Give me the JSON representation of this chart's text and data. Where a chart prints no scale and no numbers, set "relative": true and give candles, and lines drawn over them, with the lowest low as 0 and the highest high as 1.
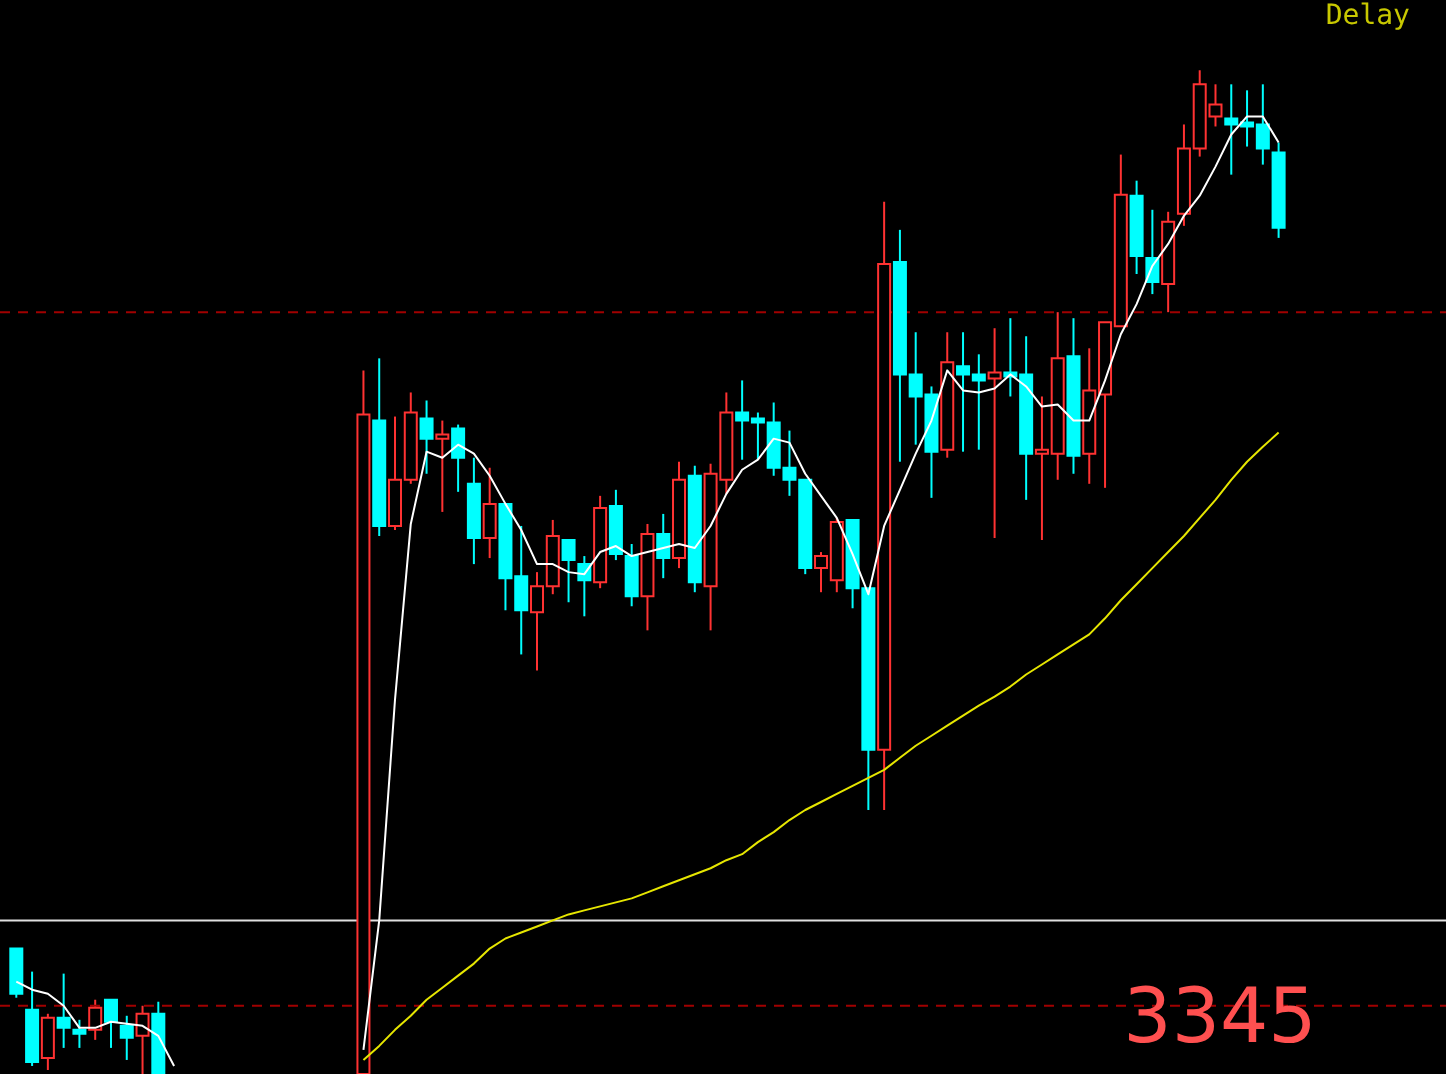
{
  "chart_data": {
    "type": "candlestick",
    "relative": true,
    "categories": [
      null,
      null,
      null,
      null,
      null,
      null,
      null,
      null,
      null,
      null,
      null,
      null,
      null,
      null,
      null,
      null,
      null,
      null,
      null,
      null,
      null,
      null,
      null,
      null,
      null,
      null,
      null,
      null,
      null,
      null,
      null,
      null,
      null,
      null,
      null,
      null,
      null,
      null,
      null,
      null,
      null,
      null,
      null,
      null,
      null,
      null,
      null,
      null,
      null,
      null,
      null,
      null,
      null,
      null,
      null,
      null,
      null,
      null,
      null,
      null,
      null,
      null,
      null,
      null,
      null,
      null,
      null,
      null,
      null,
      null,
      null,
      null,
      null,
      null,
      null,
      null,
      null,
      null,
      null,
      null,
      null
    ],
    "ohlc": [
      [
        0.125,
        0.125,
        0.076,
        0.08
      ],
      [
        0.064,
        0.102,
        0.008,
        0.012
      ],
      [
        0.016,
        0.06,
        0.004,
        0.056
      ],
      [
        0.056,
        0.1,
        0.026,
        0.046
      ],
      [
        0.044,
        0.054,
        0.026,
        0.04
      ],
      [
        0.044,
        0.074,
        0.034,
        0.066
      ],
      [
        0.074,
        0.074,
        0.026,
        0.052
      ],
      [
        0.048,
        0.058,
        0.014,
        0.036
      ],
      [
        0.038,
        0.068,
        0.0,
        0.06
      ],
      [
        0.06,
        0.072,
        0.0,
        0.0
      ],
      null,
      null,
      null,
      null,
      null,
      null,
      null,
      null,
      null,
      null,
      null,
      null,
      [
        0.0,
        0.701,
        0.0,
        0.657
      ],
      [
        0.651,
        0.713,
        0.536,
        0.546
      ],
      [
        0.546,
        0.655,
        0.542,
        0.592
      ],
      [
        0.592,
        0.679,
        0.588,
        0.659
      ],
      [
        0.653,
        0.671,
        0.598,
        0.633
      ],
      [
        0.633,
        0.651,
        0.56,
        0.637
      ],
      [
        0.643,
        0.647,
        0.58,
        0.614
      ],
      [
        0.588,
        0.614,
        0.508,
        0.534
      ],
      [
        0.534,
        0.604,
        0.514,
        0.568
      ],
      [
        0.568,
        0.568,
        0.462,
        0.494
      ],
      [
        0.496,
        0.546,
        0.418,
        0.462
      ],
      [
        0.46,
        0.5,
        0.402,
        0.486
      ],
      [
        0.486,
        0.552,
        0.478,
        0.536
      ],
      [
        0.532,
        0.532,
        0.47,
        0.512
      ],
      [
        0.508,
        0.516,
        0.456,
        0.492
      ],
      [
        0.49,
        0.576,
        0.484,
        0.564
      ],
      [
        0.566,
        0.582,
        0.512,
        0.518
      ],
      [
        0.516,
        0.528,
        0.466,
        0.476
      ],
      [
        0.476,
        0.548,
        0.442,
        0.538
      ],
      [
        0.538,
        0.558,
        0.494,
        0.514
      ],
      [
        0.514,
        0.61,
        0.504,
        0.592
      ],
      [
        0.596,
        0.606,
        0.48,
        0.49
      ],
      [
        0.486,
        0.608,
        0.442,
        0.598
      ],
      [
        0.592,
        0.679,
        0.578,
        0.659
      ],
      [
        0.659,
        0.691,
        0.612,
        0.651
      ],
      [
        0.653,
        0.659,
        0.612,
        0.649
      ],
      [
        0.649,
        0.669,
        0.596,
        0.604
      ],
      [
        0.604,
        0.641,
        0.576,
        0.592
      ],
      [
        0.592,
        0.592,
        0.498,
        0.504
      ],
      [
        0.504,
        0.52,
        0.48,
        0.516
      ],
      [
        0.492,
        0.554,
        0.48,
        0.55
      ],
      [
        0.552,
        0.552,
        0.464,
        0.484
      ],
      [
        0.484,
        0.484,
        0.263,
        0.323
      ],
      [
        0.323,
        0.869,
        0.263,
        0.807
      ],
      [
        0.809,
        0.841,
        0.61,
        0.697
      ],
      [
        0.697,
        0.739,
        0.627,
        0.675
      ],
      [
        0.677,
        0.685,
        0.574,
        0.62
      ],
      [
        0.622,
        0.739,
        0.614,
        0.709
      ],
      [
        0.705,
        0.739,
        0.62,
        0.697
      ],
      [
        0.697,
        0.717,
        0.622,
        0.691
      ],
      [
        0.693,
        0.743,
        0.534,
        0.699
      ],
      [
        0.699,
        0.753,
        0.675,
        0.695
      ],
      [
        0.697,
        0.735,
        0.572,
        0.618
      ],
      [
        0.618,
        0.675,
        0.532,
        0.622
      ],
      [
        0.618,
        0.759,
        0.592,
        0.713
      ],
      [
        0.715,
        0.753,
        0.598,
        0.616
      ],
      [
        0.618,
        0.723,
        0.588,
        0.681
      ],
      [
        0.677,
        0.749,
        0.584,
        0.749
      ],
      [
        0.745,
        0.916,
        0.745,
        0.876
      ],
      [
        0.875,
        0.89,
        0.797,
        0.815
      ],
      [
        0.813,
        0.861,
        0.777,
        0.789
      ],
      [
        0.787,
        0.859,
        0.759,
        0.849
      ],
      [
        0.857,
        0.946,
        0.845,
        0.922
      ],
      [
        0.922,
        1.0,
        0.914,
        0.986
      ],
      [
        0.954,
        0.986,
        0.944,
        0.966
      ],
      [
        0.952,
        0.986,
        0.896,
        0.946
      ],
      [
        0.948,
        0.98,
        0.924,
        0.944
      ],
      [
        0.946,
        0.986,
        0.906,
        0.922
      ],
      [
        0.918,
        0.928,
        0.833,
        0.843
      ]
    ],
    "colors": [
      "#00ffff",
      "#00ffff",
      "#ff3232",
      "#00ffff",
      "#00ffff",
      "#ff3232",
      "#00ffff",
      "#00ffff",
      "#ff3232",
      "#00ffff",
      null,
      null,
      null,
      null,
      null,
      null,
      null,
      null,
      null,
      null,
      null,
      null,
      "#ff3232",
      "#00ffff",
      "#ff3232",
      "#ff3232",
      "#00ffff",
      "#ff3232",
      "#00ffff",
      "#00ffff",
      "#ff3232",
      "#00ffff",
      "#00ffff",
      "#ff3232",
      "#ff3232",
      "#00ffff",
      "#00ffff",
      "#ff3232",
      "#00ffff",
      "#00ffff",
      "#ff3232",
      "#00ffff",
      "#ff3232",
      "#00ffff",
      "#ff3232",
      "#ff3232",
      "#00ffff",
      "#00ffff",
      "#00ffff",
      "#00ffff",
      "#00ffff",
      "#ff3232",
      "#ff3232",
      "#00ffff",
      "#00ffff",
      "#ff3232",
      "#00ffff",
      "#00ffff",
      "#00ffff",
      "#ff3232",
      "#00ffff",
      "#00ffff",
      "#ff3232",
      "#00ffff",
      "#00ffff",
      "#ff3232",
      "#ff3232",
      "#00ffff",
      "#ff3232",
      "#ff3232",
      "#ff3232",
      "#00ffff",
      "#00ffff",
      "#ff3232",
      "#ff3232",
      "#ff3232",
      "#ff3232",
      "#00ffff",
      "#00ffff",
      "#00ffff",
      "#00ffff"
    ],
    "series": [
      {
        "type": "line",
        "color": "#ffffff",
        "values": [
          0.092,
          0.084,
          0.08,
          0.068,
          0.046,
          0.046,
          0.052,
          0.05,
          0.048,
          0.038,
          0.008,
          null,
          null,
          null,
          null,
          null,
          null,
          null,
          null,
          null,
          null,
          null,
          0.024,
          0.153,
          0.373,
          0.548,
          0.62,
          0.614,
          0.627,
          0.618,
          0.596,
          0.568,
          0.542,
          0.508,
          0.508,
          0.5,
          0.498,
          0.52,
          0.526,
          0.516,
          0.52,
          0.524,
          0.528,
          0.524,
          0.546,
          0.578,
          0.602,
          0.612,
          0.633,
          0.629,
          0.598,
          0.576,
          0.554,
          0.518,
          0.478,
          0.546,
          0.582,
          0.618,
          0.651,
          0.701,
          0.681,
          0.679,
          0.683,
          0.697,
          0.685,
          0.665,
          0.667,
          0.651,
          0.651,
          0.691,
          0.737,
          0.767,
          0.805,
          0.827,
          0.855,
          0.875,
          0.904,
          0.936,
          0.954,
          0.954,
          0.928
        ]
      },
      {
        "type": "line",
        "color": "#e6e600",
        "values": [
          null,
          null,
          null,
          null,
          null,
          null,
          null,
          null,
          null,
          null,
          null,
          null,
          null,
          null,
          null,
          null,
          null,
          null,
          null,
          null,
          null,
          null,
          0.014,
          0.028,
          0.044,
          0.058,
          0.074,
          0.086,
          0.098,
          0.11,
          0.125,
          0.135,
          0.141,
          0.147,
          0.153,
          0.159,
          0.163,
          0.167,
          0.171,
          0.175,
          0.181,
          0.187,
          0.193,
          0.199,
          0.205,
          0.213,
          0.219,
          0.231,
          0.241,
          0.253,
          0.263,
          0.271,
          0.279,
          0.287,
          0.295,
          0.303,
          0.315,
          0.327,
          0.337,
          0.347,
          0.357,
          0.367,
          0.376,
          0.386,
          0.398,
          0.408,
          0.418,
          0.428,
          0.438,
          0.454,
          0.472,
          0.488,
          0.504,
          0.52,
          0.536,
          0.554,
          0.572,
          0.592,
          0.61,
          0.625,
          0.639
        ]
      }
    ],
    "ref_lines": [
      {
        "axis": "y",
        "value": 0.153,
        "color": "#e0e0e0",
        "line_style": "solid"
      },
      {
        "axis": "y",
        "value": 0.759,
        "color": "#a00000",
        "line_style": "dashed"
      },
      {
        "axis": "y",
        "value": 0.068,
        "color": "#a00000",
        "line_style": "dashed"
      }
    ],
    "annotations": [
      "Delay",
      "3345"
    ]
  }
}
